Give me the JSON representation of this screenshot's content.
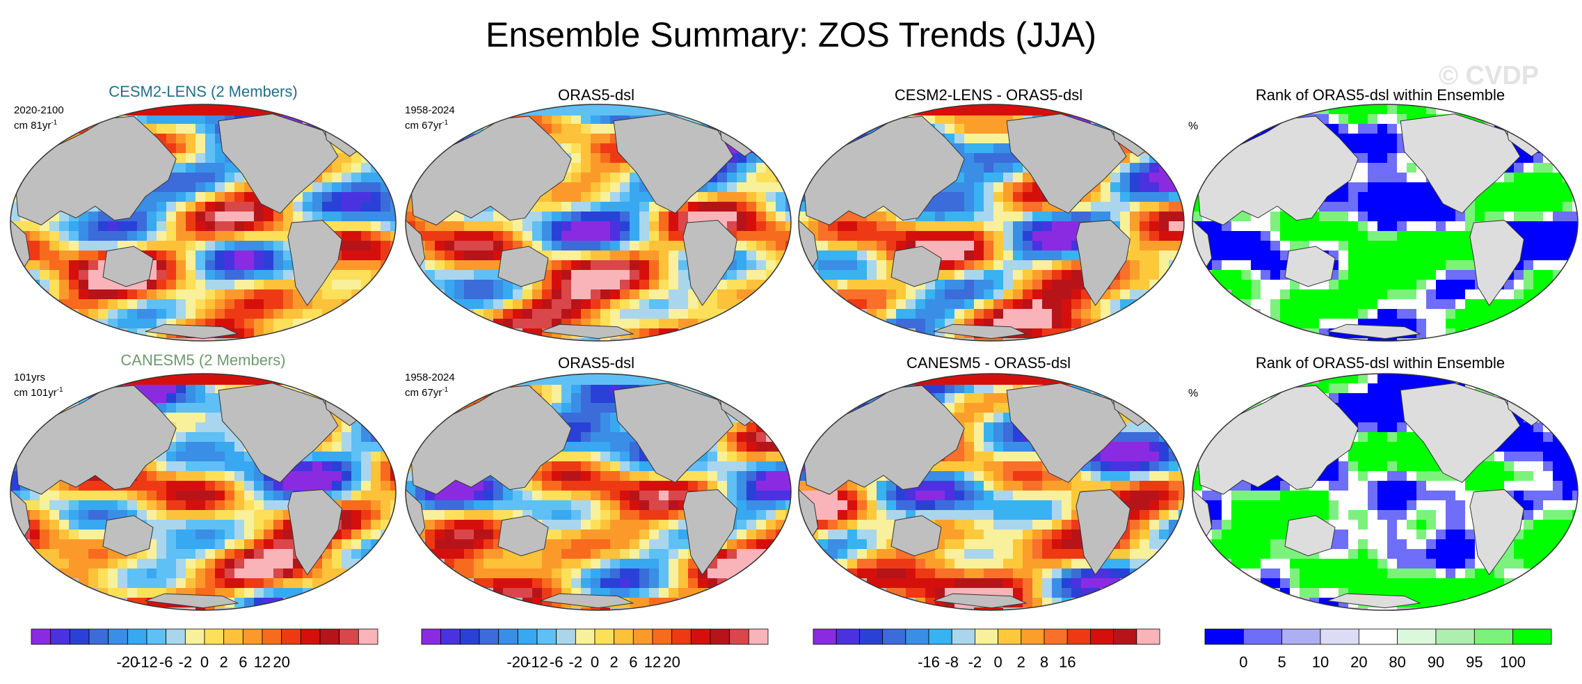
{
  "title": "Ensemble Summary: ZOS Trends (JJA)",
  "watermark": "© CVDP",
  "rows": [
    {
      "model_title": "CESM2-LENS (2 Members)",
      "model_period": "2020-2100",
      "model_units": "cm 81yr",
      "obs_title": "ORAS5-dsl",
      "obs_period": "1958-2024",
      "obs_units": "cm 67yr",
      "diff_title": "CESM2-LENS - ORAS5-dsl",
      "rank_title": "Rank of ORAS5-dsl within Ensemble",
      "rank_units": "%"
    },
    {
      "model_title": "CANESM5 (2 Members)",
      "model_period": "101yrs",
      "model_units": "cm 101yr",
      "obs_title": "ORAS5-dsl",
      "obs_period": "1958-2024",
      "obs_units": "cm 67yr",
      "diff_title": "CANESM5 - ORAS5-dsl",
      "rank_title": "Rank of ORAS5-dsl within Ensemble",
      "rank_units": "%"
    }
  ],
  "unit_exponent": "-1",
  "chart_data": {
    "type": "heatmap",
    "title": "Ensemble Summary: ZOS Trends (JJA)",
    "panels": [
      {
        "row": 1,
        "col": 1,
        "title": "CESM2-LENS (2 Members)",
        "period": "2020-2100",
        "units": "cm 81yr-1",
        "colorbar": "trend"
      },
      {
        "row": 1,
        "col": 2,
        "title": "ORAS5-dsl",
        "period": "1958-2024",
        "units": "cm 67yr-1",
        "colorbar": "trend"
      },
      {
        "row": 1,
        "col": 3,
        "title": "CESM2-LENS - ORAS5-dsl",
        "colorbar": "difference"
      },
      {
        "row": 1,
        "col": 4,
        "title": "Rank of ORAS5-dsl within Ensemble",
        "units": "%",
        "colorbar": "rank"
      },
      {
        "row": 2,
        "col": 1,
        "title": "CANESM5 (2 Members)",
        "period": "101yrs",
        "units": "cm 101yr-1",
        "colorbar": "trend"
      },
      {
        "row": 2,
        "col": 2,
        "title": "ORAS5-dsl",
        "period": "1958-2024",
        "units": "cm 67yr-1",
        "colorbar": "trend"
      },
      {
        "row": 2,
        "col": 3,
        "title": "CANESM5 - ORAS5-dsl",
        "colorbar": "difference"
      },
      {
        "row": 2,
        "col": 4,
        "title": "Rank of ORAS5-dsl within Ensemble",
        "units": "%",
        "colorbar": "rank"
      }
    ],
    "colorbars": {
      "trend": {
        "ticks": [
          "-20",
          "-12",
          "-6",
          "-2",
          "0",
          "2",
          "6",
          "12",
          "20"
        ],
        "colors": [
          "#8a2be2",
          "#4b32e0",
          "#2a41d8",
          "#3b6cda",
          "#3a8ee6",
          "#38a8f0",
          "#5ec0f5",
          "#a9d6ec",
          "#f8f09a",
          "#fde05a",
          "#fdc13a",
          "#fb9a2a",
          "#f86b1e",
          "#ee3a14",
          "#d5100c",
          "#b7141a",
          "#d9474b",
          "#f8b4b9"
        ]
      },
      "difference": {
        "ticks": [
          "-16",
          "-8",
          "-2",
          "0",
          "2",
          "8",
          "16"
        ],
        "colors": [
          "#8a2be2",
          "#4b32e0",
          "#2a41d8",
          "#3b6cda",
          "#3a8ee6",
          "#38b2f0",
          "#a9d6ec",
          "#f8f09a",
          "#fdc93a",
          "#fb9f2a",
          "#f8702a",
          "#ee3a14",
          "#d5100c",
          "#b7141a",
          "#f8b4b9"
        ]
      },
      "rank": {
        "ticks": [
          "0",
          "5",
          "10",
          "20",
          "80",
          "90",
          "95",
          "100"
        ],
        "colors": [
          "#0000ff",
          "#6e6ef8",
          "#aeaef2",
          "#dcdcf6",
          "#ffffff",
          "#dcf8dc",
          "#aeeeae",
          "#7cf27c",
          "#00ff00"
        ]
      }
    }
  }
}
